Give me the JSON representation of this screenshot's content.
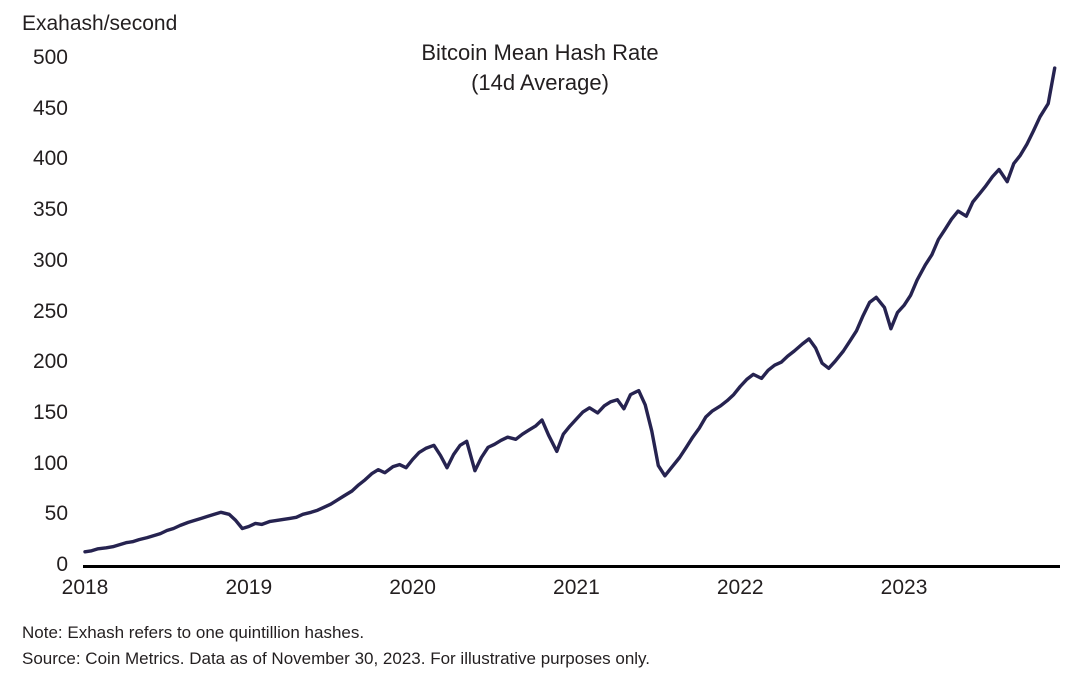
{
  "header": {
    "unit_label": "Exahash/second"
  },
  "title": {
    "line1": "Bitcoin Mean Hash Rate",
    "line2": "(14d Average)"
  },
  "footer": {
    "note": "Note: Exhash refers to one quintillion hashes.",
    "source": "Source: Coin Metrics. Data as of November 30, 2023. For illustrative purposes only."
  },
  "chart_data": {
    "type": "line",
    "title": "Bitcoin Mean Hash Rate (14d Average)",
    "xlabel": "",
    "ylabel": "Exahash/second",
    "ylim": [
      0,
      500
    ],
    "yticks": [
      0,
      50,
      100,
      150,
      200,
      250,
      300,
      350,
      400,
      450,
      500
    ],
    "xticks": [
      2018,
      2019,
      2020,
      2021,
      2022,
      2023
    ],
    "x_range": [
      2018.0,
      2023.94
    ],
    "grid": false,
    "legend": "none",
    "line_color": "#262350",
    "axis_color": "#000000",
    "series": [
      {
        "name": "Bitcoin Mean Hash Rate 14d Average (EH/s)",
        "x": [
          2018.0,
          2018.04,
          2018.08,
          2018.13,
          2018.17,
          2018.21,
          2018.25,
          2018.29,
          2018.33,
          2018.38,
          2018.42,
          2018.46,
          2018.5,
          2018.54,
          2018.58,
          2018.63,
          2018.67,
          2018.71,
          2018.75,
          2018.79,
          2018.83,
          2018.88,
          2018.92,
          2018.96,
          2019.0,
          2019.04,
          2019.08,
          2019.13,
          2019.17,
          2019.21,
          2019.25,
          2019.29,
          2019.33,
          2019.38,
          2019.42,
          2019.46,
          2019.5,
          2019.54,
          2019.58,
          2019.63,
          2019.67,
          2019.71,
          2019.75,
          2019.79,
          2019.83,
          2019.88,
          2019.92,
          2019.96,
          2020.0,
          2020.04,
          2020.08,
          2020.13,
          2020.17,
          2020.21,
          2020.25,
          2020.29,
          2020.33,
          2020.38,
          2020.42,
          2020.46,
          2020.5,
          2020.54,
          2020.58,
          2020.63,
          2020.67,
          2020.71,
          2020.75,
          2020.79,
          2020.83,
          2020.88,
          2020.92,
          2020.96,
          2021.0,
          2021.04,
          2021.08,
          2021.13,
          2021.17,
          2021.21,
          2021.25,
          2021.29,
          2021.33,
          2021.38,
          2021.42,
          2021.46,
          2021.5,
          2021.54,
          2021.58,
          2021.63,
          2021.67,
          2021.71,
          2021.75,
          2021.79,
          2021.83,
          2021.88,
          2021.92,
          2021.96,
          2022.0,
          2022.04,
          2022.08,
          2022.13,
          2022.17,
          2022.21,
          2022.25,
          2022.29,
          2022.33,
          2022.38,
          2022.42,
          2022.46,
          2022.5,
          2022.54,
          2022.58,
          2022.63,
          2022.67,
          2022.71,
          2022.75,
          2022.79,
          2022.83,
          2022.88,
          2022.92,
          2022.96,
          2023.0,
          2023.04,
          2023.08,
          2023.13,
          2023.17,
          2023.21,
          2023.25,
          2023.29,
          2023.33,
          2023.38,
          2023.42,
          2023.46,
          2023.5,
          2023.54,
          2023.58,
          2023.63,
          2023.67,
          2023.71,
          2023.75,
          2023.79,
          2023.83,
          2023.88,
          2023.92
        ],
        "values": [
          13,
          14,
          16,
          17,
          18,
          20,
          22,
          23,
          25,
          27,
          29,
          31,
          34,
          36,
          39,
          42,
          44,
          46,
          48,
          50,
          52,
          50,
          44,
          36,
          38,
          41,
          40,
          43,
          44,
          45,
          46,
          47,
          50,
          52,
          54,
          57,
          60,
          64,
          68,
          73,
          79,
          84,
          90,
          94,
          91,
          97,
          99,
          96,
          104,
          111,
          115,
          118,
          108,
          96,
          109,
          118,
          122,
          93,
          106,
          116,
          119,
          123,
          126,
          124,
          129,
          133,
          137,
          143,
          128,
          112,
          129,
          137,
          144,
          151,
          155,
          150,
          157,
          161,
          163,
          154,
          168,
          172,
          158,
          132,
          98,
          88,
          96,
          106,
          116,
          126,
          135,
          146,
          152,
          157,
          162,
          168,
          176,
          183,
          188,
          184,
          192,
          197,
          200,
          206,
          211,
          218,
          223,
          214,
          199,
          194,
          201,
          211,
          221,
          231,
          246,
          259,
          264,
          254,
          233,
          249,
          256,
          266,
          281,
          296,
          306,
          321,
          331,
          341,
          349,
          344,
          358,
          366,
          374,
          383,
          390,
          378,
          396,
          404,
          415,
          428,
          442,
          455,
          490
        ]
      }
    ]
  }
}
